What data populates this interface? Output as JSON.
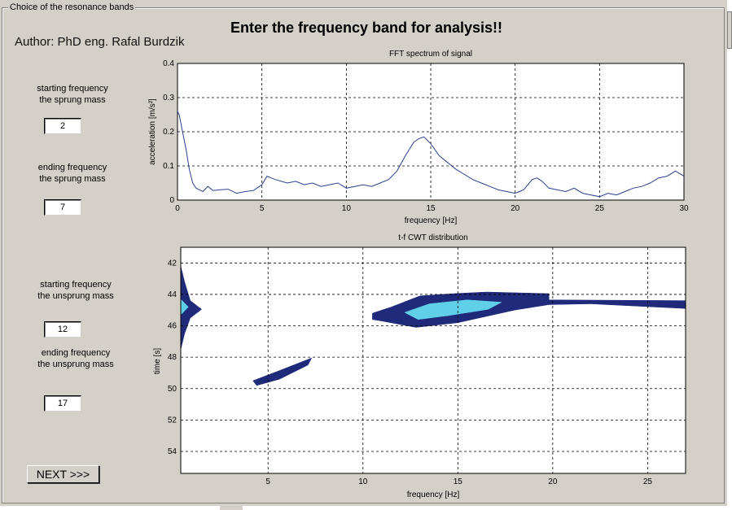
{
  "window": {
    "title": "Choice of the resonance bands"
  },
  "header": {
    "title": "Enter the frequency band for analysis!!",
    "author": "Author: PhD eng. Rafal Burdzik"
  },
  "form": {
    "sprung_start": {
      "label": "starting frequency\nthe sprung mass",
      "value": "2"
    },
    "sprung_end": {
      "label": "ending frequency\nthe sprung mass",
      "value": "7"
    },
    "unsprung_start": {
      "label": "starting frequency\nthe unsprung mass",
      "value": "12"
    },
    "unsprung_end": {
      "label": "ending frequency\nthe unsprung mass",
      "value": "17"
    },
    "next_label": "NEXT >>>"
  },
  "chart_data": [
    {
      "type": "line",
      "title": "FFT spectrum of signal",
      "xlabel": "frequency [Hz]",
      "ylabel": "acceleration [m/s²]",
      "xlim": [
        0,
        30
      ],
      "ylim": [
        0,
        0.4
      ],
      "xticks": [
        "0",
        "5",
        "10",
        "15",
        "20",
        "25",
        "30"
      ],
      "yticks": [
        "0",
        "0.1",
        "0.2",
        "0.3",
        "0.4"
      ],
      "grid": true,
      "series": [
        {
          "name": "FFT",
          "color": "#2a3f8f",
          "x": [
            0,
            0.1,
            0.3,
            0.5,
            0.7,
            0.9,
            1.1,
            1.3,
            1.5,
            1.8,
            2.1,
            2.5,
            3,
            3.5,
            4,
            4.5,
            5,
            5.3,
            5.8,
            6.5,
            7,
            7.5,
            8,
            8.5,
            9,
            9.5,
            10,
            10.5,
            11,
            11.5,
            12,
            12.5,
            13,
            13.5,
            14,
            14.3,
            14.6,
            15,
            15.5,
            16,
            16.5,
            17,
            17.5,
            18,
            18.5,
            19,
            19.5,
            20,
            20.5,
            21,
            21.3,
            21.6,
            22,
            22.5,
            23,
            23.5,
            24,
            24.5,
            25,
            25.5,
            26,
            26.5,
            27,
            27.5,
            28,
            28.5,
            29,
            29.5,
            30
          ],
          "y": [
            0.26,
            0.25,
            0.2,
            0.15,
            0.09,
            0.05,
            0.035,
            0.03,
            0.025,
            0.04,
            0.028,
            0.03,
            0.032,
            0.02,
            0.025,
            0.028,
            0.045,
            0.07,
            0.06,
            0.05,
            0.055,
            0.045,
            0.05,
            0.04,
            0.045,
            0.05,
            0.035,
            0.04,
            0.045,
            0.04,
            0.05,
            0.06,
            0.085,
            0.13,
            0.17,
            0.18,
            0.185,
            0.165,
            0.13,
            0.11,
            0.09,
            0.075,
            0.06,
            0.05,
            0.04,
            0.03,
            0.025,
            0.02,
            0.03,
            0.06,
            0.065,
            0.055,
            0.035,
            0.03,
            0.025,
            0.035,
            0.02,
            0.015,
            0.01,
            0.02,
            0.015,
            0.025,
            0.035,
            0.04,
            0.05,
            0.065,
            0.07,
            0.085,
            0.07
          ]
        }
      ]
    },
    {
      "type": "heatmap",
      "title": "t-f CWT distribution",
      "xlabel": "frequency [Hz]",
      "ylabel": "time [s]",
      "xlim": [
        0.4,
        27
      ],
      "ylim": [
        41,
        55.4
      ],
      "xticks": [
        "5",
        "10",
        "15",
        "20",
        "25"
      ],
      "yticks": [
        "42",
        "44",
        "46",
        "48",
        "50",
        "52",
        "54"
      ],
      "grid": true,
      "regions": [
        {
          "name": "left-edge-band",
          "color": "#1f2a7a",
          "points": [
            [
              0.4,
              42.2
            ],
            [
              0.6,
              43.2
            ],
            [
              0.9,
              44.4
            ],
            [
              1.5,
              44.95
            ],
            [
              0.9,
              45.5
            ],
            [
              0.6,
              46.5
            ],
            [
              0.4,
              47.5
            ]
          ]
        },
        {
          "name": "left-edge-core",
          "color": "#5fd0e8",
          "points": [
            [
              0.4,
              44.3
            ],
            [
              0.8,
              44.8
            ],
            [
              0.4,
              45.3
            ]
          ]
        },
        {
          "name": "low-band",
          "color": "#1f2a7a",
          "points": [
            [
              4.2,
              49.5
            ],
            [
              5.5,
              48.9
            ],
            [
              7.3,
              48.05
            ],
            [
              7.1,
              48.5
            ],
            [
              5.6,
              49.4
            ],
            [
              4.4,
              49.8
            ]
          ]
        },
        {
          "name": "main-band",
          "color": "#1f2a7a",
          "points": [
            [
              10.5,
              45.2
            ],
            [
              11.5,
              44.8
            ],
            [
              13,
              44.1
            ],
            [
              14.8,
              43.95
            ],
            [
              16.5,
              43.85
            ],
            [
              19.8,
              43.95
            ],
            [
              19.8,
              44.35
            ],
            [
              27,
              44.4
            ],
            [
              27,
              44.9
            ],
            [
              22,
              44.6
            ],
            [
              19.8,
              44.65
            ],
            [
              18,
              45
            ],
            [
              15,
              45.8
            ],
            [
              12.8,
              46.1
            ],
            [
              11,
              45.7
            ],
            [
              10.5,
              45.6
            ]
          ]
        },
        {
          "name": "main-band-core",
          "color": "#5fd0e8",
          "points": [
            [
              12.2,
              45.15
            ],
            [
              13.5,
              44.6
            ],
            [
              15.5,
              44.35
            ],
            [
              17.3,
              44.5
            ],
            [
              16.6,
              44.95
            ],
            [
              14.5,
              45.35
            ],
            [
              12.9,
              45.6
            ]
          ]
        }
      ]
    }
  ]
}
